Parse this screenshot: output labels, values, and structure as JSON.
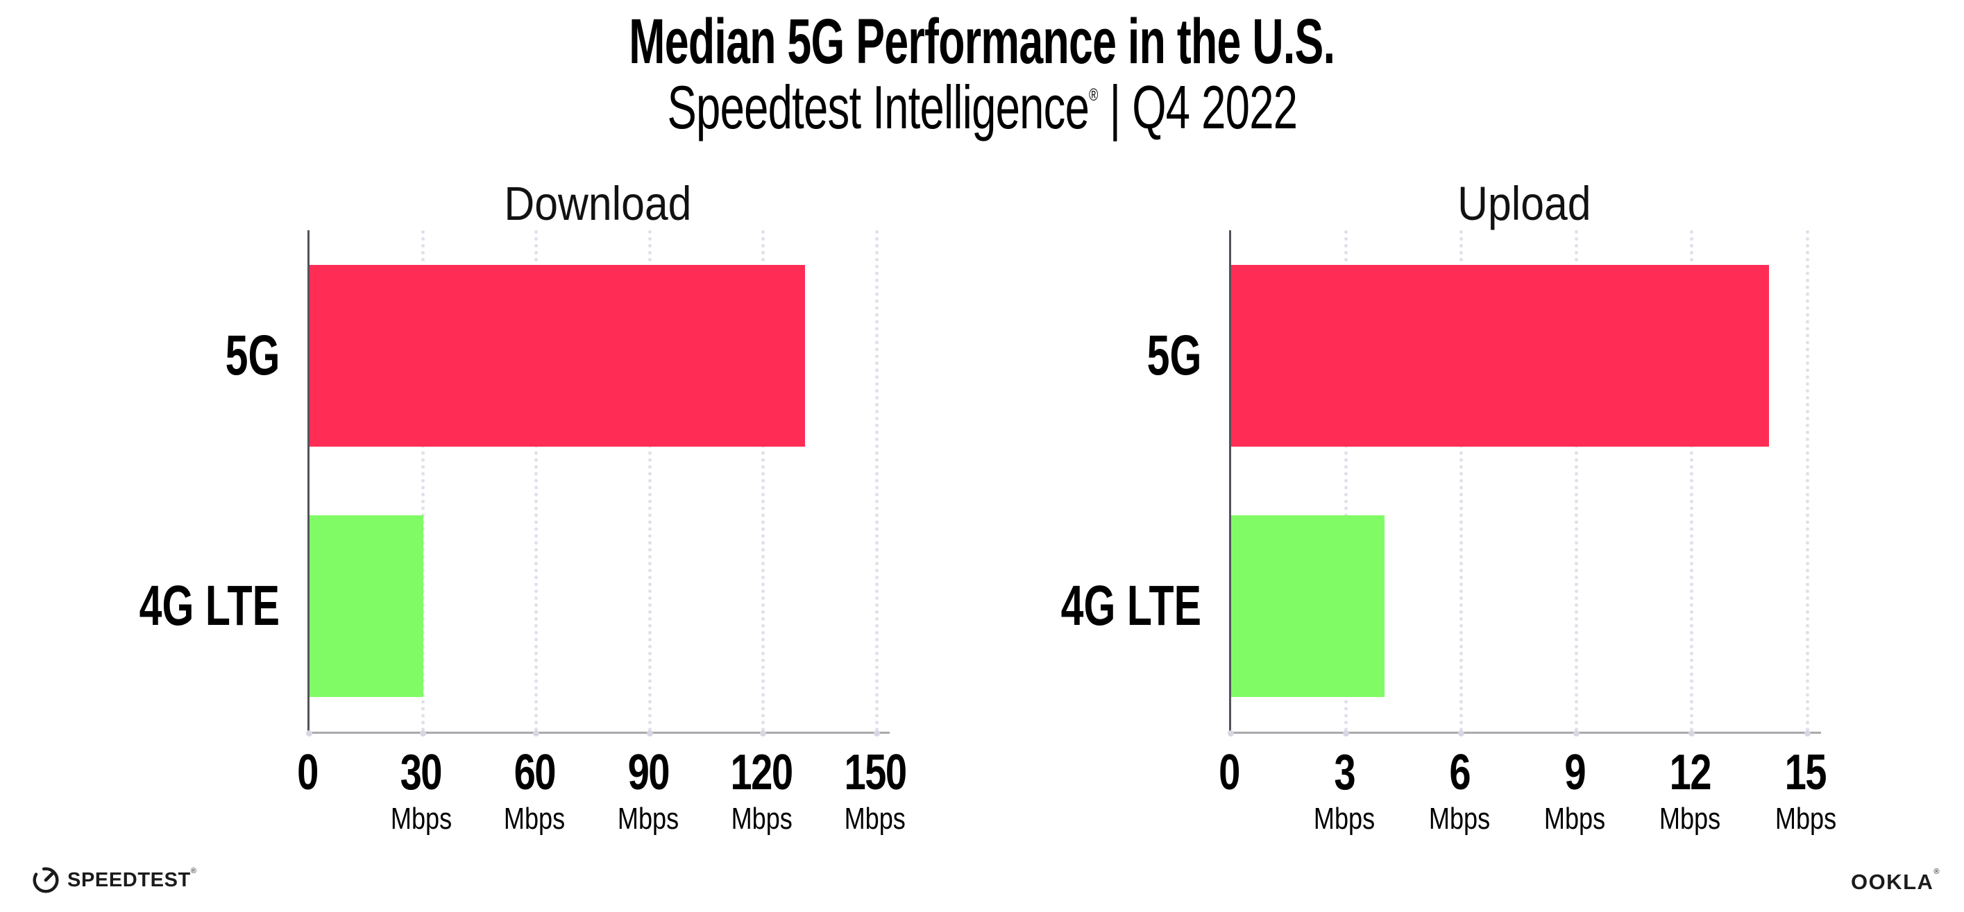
{
  "header": {
    "title": "Median 5G Performance in the U.S.",
    "subtitle_brand": "Speedtest Intelligence",
    "subtitle_reg_mark": "®",
    "subtitle_rest": " | Q4 2022"
  },
  "chart_data": [
    {
      "type": "bar",
      "orientation": "horizontal",
      "title": "Download",
      "categories": [
        "5G",
        "4G LTE"
      ],
      "values": [
        131,
        30
      ],
      "value_unit": "Mbps",
      "series_colors": [
        "#FF2D55",
        "#80FB66"
      ],
      "xticks": [
        0,
        30,
        60,
        90,
        120,
        150
      ],
      "xtick_unit_label": "Mbps",
      "xlim": [
        0,
        153.3
      ],
      "grid": "vertical-dotted",
      "legend": "none"
    },
    {
      "type": "bar",
      "orientation": "horizontal",
      "title": "Upload",
      "categories": [
        "5G",
        "4G LTE"
      ],
      "values": [
        14,
        4
      ],
      "value_unit": "Mbps",
      "series_colors": [
        "#FF2D55",
        "#80FB66"
      ],
      "xticks": [
        0,
        3,
        6,
        9,
        12,
        15
      ],
      "xtick_unit_label": "Mbps",
      "xlim": [
        0,
        15.35
      ],
      "grid": "vertical-dotted",
      "legend": "none"
    }
  ],
  "colors": {
    "bar_5g": "#FF2D55",
    "bar_4g_lte": "#80FB66",
    "axis_y": "#52525A",
    "axis_x": "#A9A9AE",
    "gridline": "#DFE0EB",
    "tick_dot": "#D6D7E2",
    "text": "#000000",
    "logo_ink": "#1B1B1B"
  },
  "footer": {
    "speedtest_label": "SPEEDTEST",
    "speedtest_reg_mark": "®",
    "ookla_label": "OOKLA",
    "ookla_reg_mark": "®"
  }
}
